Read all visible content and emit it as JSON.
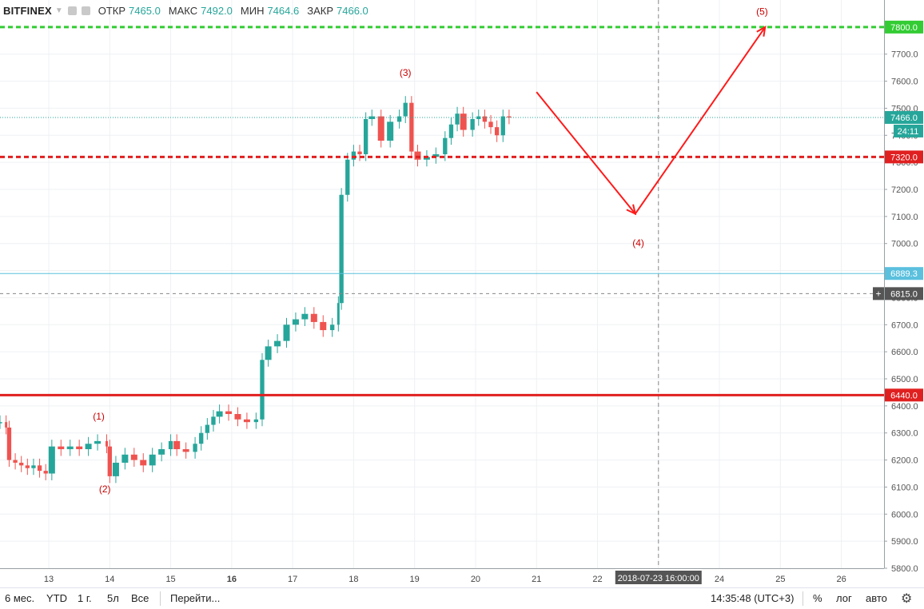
{
  "legend": {
    "symbol": "BITFINEX",
    "open_label": "ОТКР",
    "open_value": "7465.0",
    "high_label": "МАКС",
    "high_value": "7492.0",
    "low_label": "МИН",
    "low_value": "7464.6",
    "close_label": "ЗАКР",
    "close_value": "7466.0"
  },
  "bottom_bar": {
    "ranges": [
      "6 мес.",
      "YTD",
      "1 г.",
      "5л",
      "Все"
    ],
    "goto": "Перейти...",
    "clock": "14:35:48 (UTC+3)",
    "percent": "%",
    "log": "лог",
    "auto": "авто",
    "settings_icon": "gear-icon"
  },
  "chart_data": {
    "type": "candlestick",
    "ylim": [
      5800,
      7900
    ],
    "y_ticks": [
      5800,
      5900,
      6000,
      6100,
      6200,
      6300,
      6400,
      6500,
      6600,
      6700,
      6800,
      6900,
      7000,
      7100,
      7200,
      7300,
      7400,
      7500,
      7600,
      7700,
      7800
    ],
    "x_ticks": [
      13,
      14,
      15,
      16,
      17,
      18,
      19,
      20,
      21,
      22,
      23,
      24,
      25,
      26
    ],
    "x_tick_labels": [
      "13",
      "14",
      "15",
      "16",
      "17",
      "18",
      "19",
      "20",
      "21",
      "22",
      "23",
      "24",
      "25",
      "26"
    ],
    "bold_x_ticks": [
      16
    ],
    "x_range": [
      12.2,
      26.7
    ],
    "colors": {
      "up": "#26a69a",
      "down": "#ef5350",
      "red_line": "#e02020",
      "green_line": "#33cc33",
      "blue_line": "#5bc0de",
      "wave_arrow": "#ff1a1a"
    },
    "price_series": [
      [
        12.2,
        6340
      ],
      [
        12.3,
        6320
      ],
      [
        12.35,
        6200
      ],
      [
        12.45,
        6190
      ],
      [
        12.55,
        6180
      ],
      [
        12.65,
        6170
      ],
      [
        12.75,
        6180
      ],
      [
        12.85,
        6160
      ],
      [
        12.95,
        6150
      ],
      [
        13.05,
        6250
      ],
      [
        13.2,
        6240
      ],
      [
        13.35,
        6250
      ],
      [
        13.5,
        6240
      ],
      [
        13.65,
        6260
      ],
      [
        13.8,
        6270
      ],
      [
        13.95,
        6250
      ],
      [
        14.0,
        6140
      ],
      [
        14.1,
        6190
      ],
      [
        14.25,
        6220
      ],
      [
        14.4,
        6200
      ],
      [
        14.55,
        6180
      ],
      [
        14.7,
        6220
      ],
      [
        14.85,
        6240
      ],
      [
        15.0,
        6270
      ],
      [
        15.1,
        6240
      ],
      [
        15.25,
        6230
      ],
      [
        15.4,
        6260
      ],
      [
        15.5,
        6300
      ],
      [
        15.6,
        6330
      ],
      [
        15.7,
        6360
      ],
      [
        15.8,
        6380
      ],
      [
        15.95,
        6370
      ],
      [
        16.1,
        6350
      ],
      [
        16.25,
        6340
      ],
      [
        16.4,
        6350
      ],
      [
        16.5,
        6570
      ],
      [
        16.6,
        6620
      ],
      [
        16.75,
        6640
      ],
      [
        16.9,
        6700
      ],
      [
        17.05,
        6720
      ],
      [
        17.2,
        6740
      ],
      [
        17.35,
        6710
      ],
      [
        17.5,
        6680
      ],
      [
        17.65,
        6700
      ],
      [
        17.75,
        6780
      ],
      [
        17.8,
        7180
      ],
      [
        17.9,
        7310
      ],
      [
        18.0,
        7340
      ],
      [
        18.1,
        7330
      ],
      [
        18.2,
        7460
      ],
      [
        18.3,
        7470
      ],
      [
        18.45,
        7380
      ],
      [
        18.6,
        7450
      ],
      [
        18.75,
        7470
      ],
      [
        18.85,
        7520
      ],
      [
        18.95,
        7340
      ],
      [
        19.05,
        7310
      ],
      [
        19.2,
        7320
      ],
      [
        19.35,
        7330
      ],
      [
        19.5,
        7390
      ],
      [
        19.6,
        7440
      ],
      [
        19.7,
        7480
      ],
      [
        19.8,
        7420
      ],
      [
        19.95,
        7460
      ],
      [
        20.05,
        7470
      ],
      [
        20.15,
        7450
      ],
      [
        20.25,
        7430
      ],
      [
        20.35,
        7400
      ],
      [
        20.45,
        7470
      ],
      [
        20.55,
        7466
      ]
    ],
    "horizontal_lines": [
      {
        "price": 7800.0,
        "label": "7800.0",
        "style": "dashed",
        "color": "#33cc33"
      },
      {
        "price": 7466.0,
        "label": "7466.0",
        "style": "dotted",
        "color": "#26a69a"
      },
      {
        "price": 7320.0,
        "label": "7320.0",
        "style": "dashed",
        "color": "#e02020"
      },
      {
        "price": 6889.3,
        "label": "6889.3",
        "style": "solid",
        "color": "#5bc0de"
      },
      {
        "price": 6815.0,
        "label": "6815.0",
        "style": "dashed",
        "color": "#888888"
      },
      {
        "price": 6440.0,
        "label": "6440.0",
        "style": "solid",
        "color": "#e02020"
      }
    ],
    "countdown": "24:11",
    "crosshair": {
      "x": 23.0,
      "label": "2018-07-23 16:00:00"
    },
    "wave_labels": [
      {
        "text": "(1)",
        "x": 13.82,
        "y": 6350
      },
      {
        "text": "(2)",
        "x": 13.92,
        "y": 6080
      },
      {
        "text": "(3)",
        "x": 18.85,
        "y": 7620
      },
      {
        "text": "(4)",
        "x": 22.67,
        "y": 6990
      },
      {
        "text": "(5)",
        "x": 24.7,
        "y": 7845
      }
    ],
    "wave_path": [
      [
        21.0,
        7560
      ],
      [
        22.62,
        7110
      ],
      [
        24.75,
        7800
      ]
    ]
  }
}
